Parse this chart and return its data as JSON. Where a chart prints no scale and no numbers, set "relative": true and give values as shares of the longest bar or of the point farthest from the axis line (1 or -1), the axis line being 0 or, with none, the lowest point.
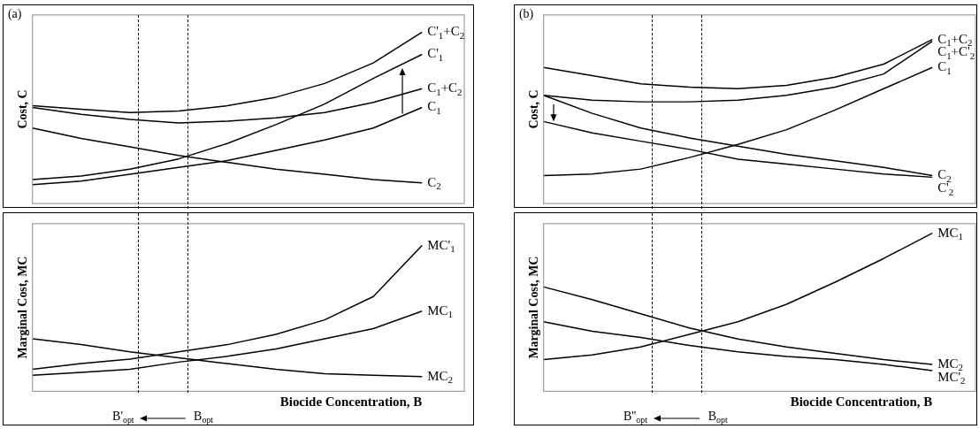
{
  "chart_data": [
    {
      "type": "line",
      "title": "(a)",
      "ylabel": "Cost, C",
      "relative": true,
      "categories": [
        null,
        null,
        null,
        null,
        null,
        null,
        null,
        null,
        null
      ],
      "series": [
        {
          "name": "C'$_{1}$+C$_{2}$",
          "color": "#000000",
          "values": [
            0.57,
            0.55,
            0.53,
            0.54,
            0.57,
            0.62,
            0.7,
            0.82,
            1
          ]
        },
        {
          "name": "C'$_{1}$",
          "color": "#000000",
          "values": [
            0.14,
            0.16,
            0.2,
            0.26,
            0.35,
            0.46,
            0.58,
            0.73,
            0.87
          ]
        },
        {
          "name": "C$_{1}$+C$_{2}$",
          "color": "#000000",
          "values": [
            0.56,
            0.52,
            0.49,
            0.47,
            0.48,
            0.5,
            0.53,
            0.59,
            0.67
          ]
        },
        {
          "name": "C$_{1}$",
          "color": "#000000",
          "values": [
            0.11,
            0.13,
            0.17,
            0.21,
            0.25,
            0.31,
            0.37,
            0.44,
            0.56
          ]
        },
        {
          "name": "C$_{2}$",
          "color": "#000000",
          "values": [
            0.44,
            0.38,
            0.33,
            0.28,
            0.24,
            0.2,
            0.17,
            0.14,
            0.12
          ]
        }
      ]
    },
    {
      "type": "line",
      "title": "(b)",
      "ylabel": "Cost, C",
      "relative": true,
      "categories": [
        null,
        null,
        null,
        null,
        null,
        null,
        null,
        null,
        null
      ],
      "series": [
        {
          "name": "C$_{1}$+C$_{2}$",
          "color": "#000000",
          "values": [
            0.83,
            0.78,
            0.73,
            0.71,
            0.7,
            0.72,
            0.77,
            0.85,
            1
          ]
        },
        {
          "name": "C$_{1}$+C'$_{2}$",
          "color": "#000000",
          "values": [
            0.66,
            0.63,
            0.62,
            0.62,
            0.63,
            0.66,
            0.71,
            0.79,
            0.99
          ]
        },
        {
          "name": "C$_{1}$",
          "color": "#000000",
          "values": [
            0.17,
            0.18,
            0.21,
            0.28,
            0.36,
            0.45,
            0.57,
            0.7,
            0.83
          ]
        },
        {
          "name": "C$_{2}$",
          "color": "#000000",
          "values": [
            0.66,
            0.55,
            0.46,
            0.4,
            0.35,
            0.3,
            0.26,
            0.22,
            0.17
          ]
        },
        {
          "name": "C'$_{2}$",
          "color": "#000000",
          "values": [
            0.5,
            0.43,
            0.38,
            0.33,
            0.27,
            0.24,
            0.21,
            0.18,
            0.16
          ]
        }
      ]
    },
    {
      "type": "line",
      "xlabel": "Biocide Concentration, B",
      "ylabel": "Marginal Cost, MC",
      "relative": true,
      "categories": [
        null,
        null,
        null,
        null,
        null,
        null,
        null,
        null,
        null
      ],
      "series": [
        {
          "name": "MC'$_{1}$",
          "color": "#000000",
          "values": [
            0.15,
            0.19,
            0.22,
            0.27,
            0.32,
            0.39,
            0.49,
            0.65,
            1
          ]
        },
        {
          "name": "MC$_{1}$",
          "color": "#000000",
          "values": [
            0.11,
            0.13,
            0.15,
            0.2,
            0.24,
            0.29,
            0.36,
            0.43,
            0.55
          ]
        },
        {
          "name": "MC$_{2}$",
          "color": "#000000",
          "values": [
            0.36,
            0.32,
            0.27,
            0.23,
            0.19,
            0.15,
            0.12,
            0.11,
            0.1
          ]
        }
      ],
      "annotations": [
        "B'$_{opt}$",
        "B$_{opt}$"
      ]
    },
    {
      "type": "line",
      "xlabel": "Biocide Concentration, B",
      "ylabel": "Marginal Cost, MC",
      "relative": true,
      "categories": [
        null,
        null,
        null,
        null,
        null,
        null,
        null,
        null,
        null
      ],
      "series": [
        {
          "name": "MC$_{1}$",
          "color": "#000000",
          "values": [
            0.2,
            0.23,
            0.28,
            0.36,
            0.44,
            0.55,
            0.69,
            0.84,
            1
          ]
        },
        {
          "name": "MC$_{2}$",
          "color": "#000000",
          "values": [
            0.66,
            0.58,
            0.49,
            0.4,
            0.33,
            0.28,
            0.24,
            0.2,
            0.17
          ]
        },
        {
          "name": "MC'$_{2}$",
          "color": "#000000",
          "values": [
            0.44,
            0.38,
            0.34,
            0.29,
            0.25,
            0.22,
            0.2,
            0.17,
            0.13
          ]
        }
      ],
      "annotations": [
        "B''$_{opt}$",
        "B$_{opt}$"
      ]
    }
  ]
}
